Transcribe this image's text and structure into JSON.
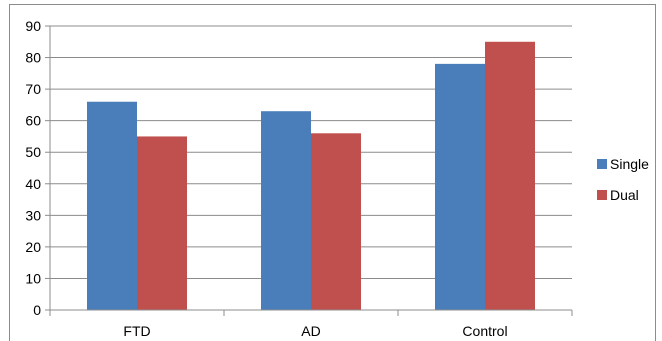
{
  "chart_data": {
    "type": "bar",
    "categories": [
      "FTD",
      "AD",
      "Control"
    ],
    "series": [
      {
        "name": "Single",
        "values": [
          66,
          63,
          78
        ],
        "color": "#4a7ebb"
      },
      {
        "name": "Dual",
        "values": [
          55,
          56,
          85
        ],
        "color": "#c0504d"
      }
    ],
    "title": "",
    "xlabel": "",
    "ylabel": "",
    "ylim": [
      0,
      90
    ],
    "yticks": [
      "0",
      "10",
      "20",
      "30",
      "40",
      "50",
      "60",
      "70",
      "80",
      "90"
    ],
    "grid": true,
    "legend_position": "right"
  }
}
